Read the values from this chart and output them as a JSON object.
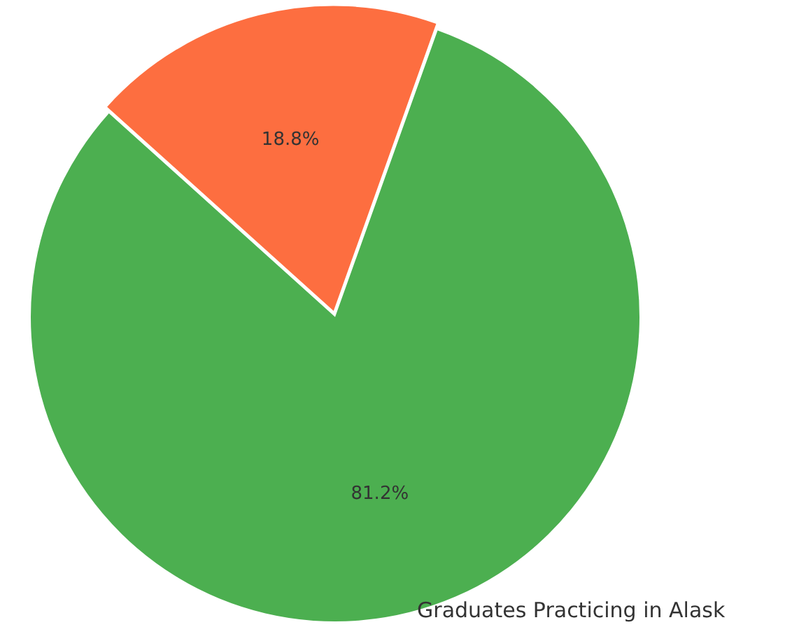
{
  "chart_data": {
    "type": "pie",
    "categories": [
      null,
      "Graduates Practicing in Alask"
    ],
    "values": [
      18.8,
      81.2
    ],
    "colors": [
      "#fd6e40",
      "#4caf50"
    ],
    "value_labels": [
      "18.8%",
      "81.2%"
    ],
    "legend": false
  }
}
